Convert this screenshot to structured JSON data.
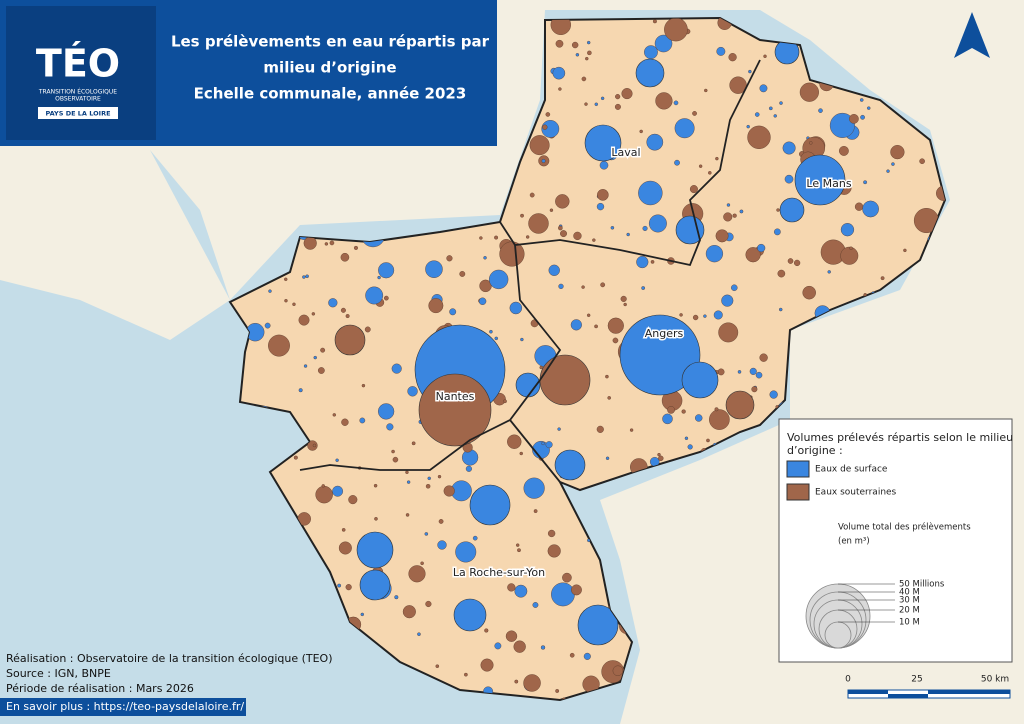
{
  "header": {
    "logo": {
      "name": "TÉO",
      "subtitle": [
        "TRANSITION ÉCOLOGIQUE",
        "OBSERVATOIRE"
      ],
      "region": "PAYS DE LA LOIRE"
    },
    "title": [
      "Les prélèvements en eau répartis par",
      "milieu d’origine",
      "Echelle communale, année 2023"
    ]
  },
  "map": {
    "cities": [
      "Laval",
      "Le Mans",
      "Angers",
      "Nantes",
      "La Roche-sur-Yon"
    ]
  },
  "legend": {
    "title": [
      "Volumes prélevés répartis selon le milieu",
      "d’origine :"
    ],
    "items": [
      {
        "label": "Eaux de surface",
        "color": "#3a86e0"
      },
      {
        "label": "Eaux souterraines",
        "color": "#a0664a"
      }
    ],
    "size_title": "Volume total des prélèvements",
    "size_unit": "(en m³)",
    "size_labels": [
      "50 Millions",
      "40 M",
      "30 M",
      "20 M",
      "10 M"
    ]
  },
  "scale": {
    "labels": [
      "0",
      "25",
      "50 km"
    ]
  },
  "credits": [
    "Réalisation : Observatoire de la transition écologique (TEO)",
    "Source : IGN, BNPE",
    "Période de réalisation : Mars 2026"
  ],
  "link": "En savoir plus : https://teo-paysdelaloire.fr/"
}
